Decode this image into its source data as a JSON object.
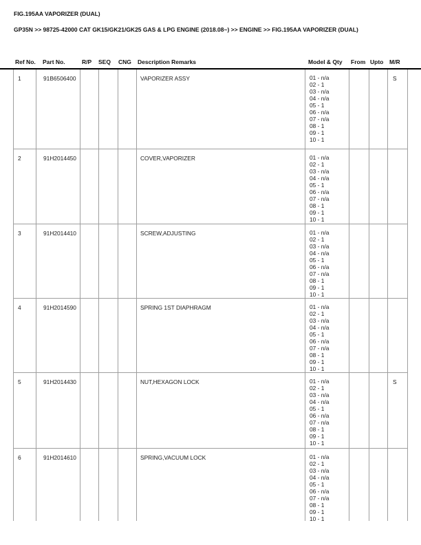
{
  "page": {
    "title": "FIG.195AA VAPORIZER (DUAL)",
    "breadcrumb": "GP35N >> 98725-42000 CAT GK15/GK21/GK25 GAS & LPG ENGINE (2018.08~) >> ENGINE >> FIG.195AA VAPORIZER (DUAL)"
  },
  "table": {
    "columns": [
      "Ref No.",
      "Part No.",
      "R/P",
      "SEQ",
      "CNG",
      "Description Remarks",
      "Model & Qty",
      "From",
      "Upto",
      "M/R"
    ],
    "rows": [
      {
        "ref_no": "1",
        "part_no": "91B6506400",
        "rp": "",
        "seq": "",
        "cng": "",
        "description": "VAPORIZER ASSY",
        "model_qty": [
          "01 - n/a",
          "02 - 1",
          "03 - n/a",
          "04 - n/a",
          "05 - 1",
          "06 - n/a",
          "07 - n/a",
          "08 - 1",
          "09 - 1",
          "10 - 1"
        ],
        "from": "",
        "upto": "",
        "mr": "S"
      },
      {
        "ref_no": "2",
        "part_no": "91H2014450",
        "rp": "",
        "seq": "",
        "cng": "",
        "description": "COVER,VAPORIZER",
        "model_qty": [
          "01 - n/a",
          "02 - 1",
          "03 - n/a",
          "04 - n/a",
          "05 - 1",
          "06 - n/a",
          "07 - n/a",
          "08 - 1",
          "09 - 1",
          "10 - 1"
        ],
        "from": "",
        "upto": "",
        "mr": ""
      },
      {
        "ref_no": "3",
        "part_no": "91H2014410",
        "rp": "",
        "seq": "",
        "cng": "",
        "description": "SCREW,ADJUSTING",
        "model_qty": [
          "01 - n/a",
          "02 - 1",
          "03 - n/a",
          "04 - n/a",
          "05 - 1",
          "06 - n/a",
          "07 - n/a",
          "08 - 1",
          "09 - 1",
          "10 - 1"
        ],
        "from": "",
        "upto": "",
        "mr": ""
      },
      {
        "ref_no": "4",
        "part_no": "91H2014590",
        "rp": "",
        "seq": "",
        "cng": "",
        "description": "SPRING 1ST DIAPHRAGM",
        "model_qty": [
          "01 - n/a",
          "02 - 1",
          "03 - n/a",
          "04 - n/a",
          "05 - 1",
          "06 - n/a",
          "07 - n/a",
          "08 - 1",
          "09 - 1",
          "10 - 1"
        ],
        "from": "",
        "upto": "",
        "mr": ""
      },
      {
        "ref_no": "5",
        "part_no": "91H2014430",
        "rp": "",
        "seq": "",
        "cng": "",
        "description": "NUT,HEXAGON LOCK",
        "model_qty": [
          "01 - n/a",
          "02 - 1",
          "03 - n/a",
          "04 - n/a",
          "05 - 1",
          "06 - n/a",
          "07 - n/a",
          "08 - 1",
          "09 - 1",
          "10 - 1"
        ],
        "from": "",
        "upto": "",
        "mr": "S"
      },
      {
        "ref_no": "6",
        "part_no": "91H2014610",
        "rp": "",
        "seq": "",
        "cng": "",
        "description": "SPRING,VACUUM LOCK",
        "model_qty": [
          "01 - n/a",
          "02 - 1",
          "03 - n/a",
          "04 - n/a",
          "05 - 1",
          "06 - n/a",
          "07 - n/a",
          "08 - 1",
          "09 - 1",
          "10 - 1"
        ],
        "from": "",
        "upto": "",
        "mr": ""
      }
    ]
  }
}
